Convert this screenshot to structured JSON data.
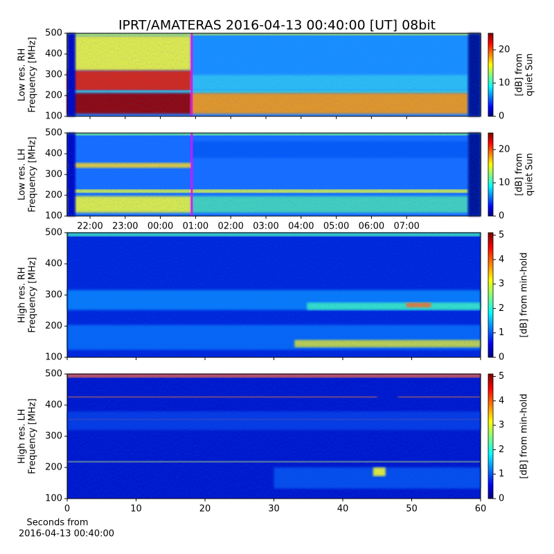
{
  "chart_data": [
    {
      "type": "heatmap",
      "title": "IPRT/AMATERAS 2016-04-13 00:40:00 [UT]   08bit",
      "ylabel": [
        "Low res. RH",
        "Frequency [MHz]"
      ],
      "ylim": [
        100,
        500
      ],
      "yticks": [
        100,
        200,
        300,
        400,
        500
      ],
      "colorbar": {
        "label": [
          "[dB] from",
          "quiet Sun"
        ],
        "lim": [
          0,
          25
        ],
        "ticks": [
          0,
          10,
          20
        ]
      }
    },
    {
      "type": "heatmap",
      "ylabel": [
        "Low res. LH",
        "Frequency [MHz]"
      ],
      "ylim": [
        100,
        500
      ],
      "yticks": [
        100,
        200,
        300,
        400,
        500
      ],
      "xtick_labels": [
        "22:00",
        "23:00",
        "00:00",
        "01:00",
        "02:00",
        "03:00",
        "04:00",
        "05:00",
        "06:00",
        "07:00"
      ],
      "colorbar": {
        "label": [
          "[dB] from",
          "quiet Sun"
        ],
        "lim": [
          0,
          25
        ],
        "ticks": [
          0,
          10,
          20
        ]
      }
    },
    {
      "type": "heatmap",
      "ylabel": [
        "High res. RH",
        "Frequency [MHz]"
      ],
      "ylim": [
        100,
        500
      ],
      "yticks": [
        100,
        200,
        300,
        400,
        500
      ],
      "xlim": [
        0,
        60
      ],
      "xticks": [
        0,
        10,
        20,
        30,
        40,
        50,
        60
      ],
      "colorbar": {
        "label": [
          "[dB] from min-hold"
        ],
        "lim": [
          0,
          5.1
        ],
        "ticks": [
          0,
          1,
          2,
          3,
          4,
          5
        ]
      }
    },
    {
      "type": "heatmap",
      "ylabel": [
        "High res. LH",
        "Frequency [MHz]"
      ],
      "ylim": [
        100,
        500
      ],
      "yticks": [
        100,
        200,
        300,
        400,
        500
      ],
      "xlim": [
        0,
        60
      ],
      "xticks": [
        0,
        10,
        20,
        30,
        40,
        50,
        60
      ],
      "xlabel": [
        "Seconds from",
        "2016-04-13 00:40:00"
      ],
      "colorbar": {
        "label": [
          "[dB] from min-hold"
        ],
        "lim": [
          0,
          5.1
        ],
        "ticks": [
          0,
          1,
          2,
          3,
          4,
          5
        ]
      }
    }
  ]
}
